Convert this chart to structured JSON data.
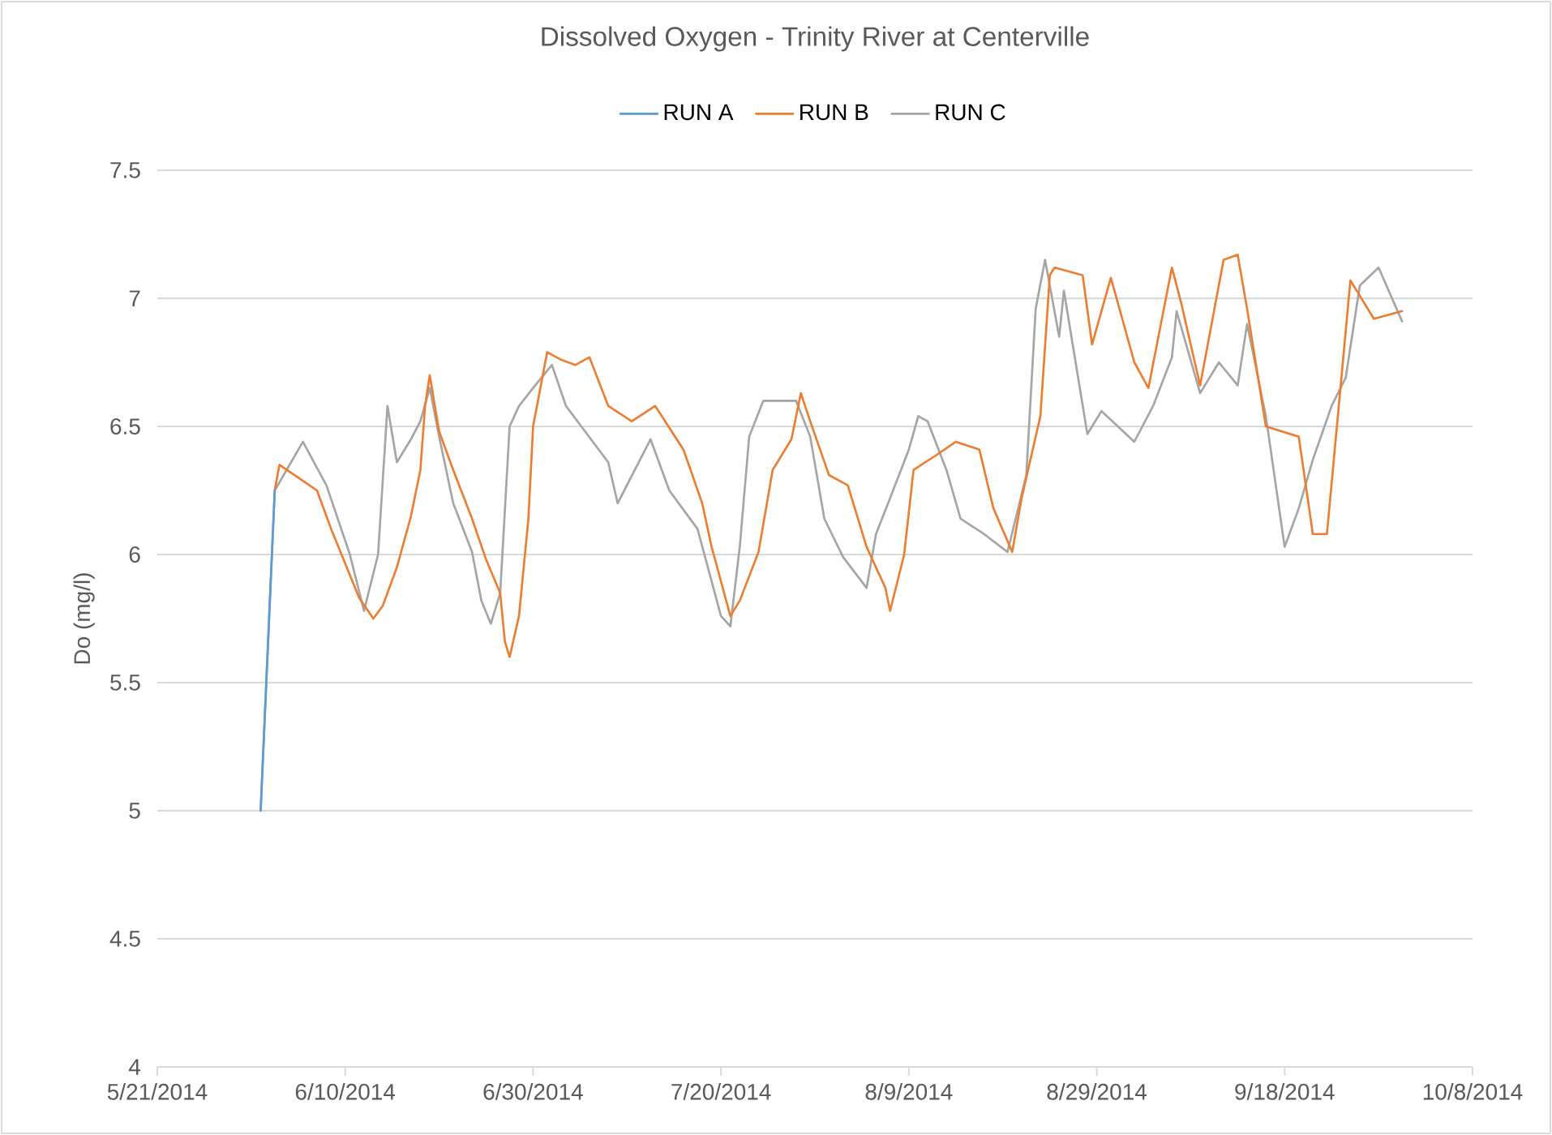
{
  "chart_data": {
    "type": "line",
    "title": "Dissolved Oxygen - Trinity River at Centerville",
    "ylabel": "Do (mg/l)",
    "xlim": [
      "2014-05-21",
      "2014-10-08"
    ],
    "xticks": [
      {
        "value": "2014-05-21",
        "label": "5/21/2014"
      },
      {
        "value": "2014-06-10",
        "label": "6/10/2014"
      },
      {
        "value": "2014-06-30",
        "label": "6/30/2014"
      },
      {
        "value": "2014-07-20",
        "label": "7/20/2014"
      },
      {
        "value": "2014-08-09",
        "label": "8/9/2014"
      },
      {
        "value": "2014-08-29",
        "label": "8/29/2014"
      },
      {
        "value": "2014-09-18",
        "label": "9/18/2014"
      },
      {
        "value": "2014-10-08",
        "label": "10/8/2014"
      }
    ],
    "ylim": [
      4,
      7.5
    ],
    "yticks": [
      4,
      4.5,
      5,
      5.5,
      6,
      6.5,
      7,
      7.5
    ],
    "grid": "y",
    "legend": "top",
    "line_style": "solid",
    "series": [
      {
        "name": "RUN A",
        "color": "#5b9bd5",
        "x": [
          "2014-06-01T00:00",
          "2014-06-02T12:00"
        ],
        "values": [
          5.0,
          6.25
        ]
      },
      {
        "name": "RUN B",
        "color": "#ed7d31",
        "x": [
          "2014-06-02T12:00",
          "2014-06-03T00:00",
          "2014-06-05T00:00",
          "2014-06-07T00:00",
          "2014-06-08T12:00",
          "2014-06-10T12:00",
          "2014-06-11T12:00",
          "2014-06-13T00:00",
          "2014-06-14T00:00",
          "2014-06-15T12:00",
          "2014-06-17T00:00",
          "2014-06-18T00:00",
          "2014-06-18T12:00",
          "2014-06-19T00:00",
          "2014-06-20T00:00",
          "2014-06-21T12:00",
          "2014-06-23T12:00",
          "2014-06-25T00:00",
          "2014-06-26T12:00",
          "2014-06-27T00:00",
          "2014-06-27T12:00",
          "2014-06-28T12:00",
          "2014-06-29T12:00",
          "2014-06-30T00:00",
          "2014-07-01T12:00",
          "2014-07-03T00:00",
          "2014-07-04T12:00",
          "2014-07-06T00:00",
          "2014-07-08T00:00",
          "2014-07-10T12:00",
          "2014-07-13T00:00",
          "2014-07-16T00:00",
          "2014-07-18T00:00",
          "2014-07-19T00:00",
          "2014-07-21T00:00",
          "2014-07-22T00:00",
          "2014-07-24T00:00",
          "2014-07-25T12:00",
          "2014-07-27T12:00",
          "2014-07-28T12:00",
          "2014-07-29T12:00",
          "2014-07-31T12:00",
          "2014-08-02T12:00",
          "2014-08-04T12:00",
          "2014-08-06T12:00",
          "2014-08-07T00:00",
          "2014-08-08T12:00",
          "2014-08-09T12:00",
          "2014-08-12T00:00",
          "2014-08-14T00:00",
          "2014-08-16T12:00",
          "2014-08-18T00:00",
          "2014-08-20T00:00",
          "2014-08-21T00:00",
          "2014-08-23T00:00",
          "2014-08-24T00:00",
          "2014-08-24T12:00",
          "2014-08-27T12:00",
          "2014-08-28T12:00",
          "2014-08-30T12:00",
          "2014-09-02T00:00",
          "2014-09-03T12:00",
          "2014-09-06T00:00",
          "2014-09-07T00:00",
          "2014-09-09T00:00",
          "2014-09-11T12:00",
          "2014-09-13T00:00",
          "2014-09-14T00:00",
          "2014-09-16T00:00",
          "2014-09-19T12:00",
          "2014-09-21T00:00",
          "2014-09-22T12:00",
          "2014-09-25T00:00",
          "2014-09-27T12:00",
          "2014-09-30T12:00"
        ],
        "values": [
          6.25,
          6.35,
          6.3,
          6.25,
          6.1,
          5.92,
          5.83,
          5.75,
          5.8,
          5.95,
          6.15,
          6.33,
          6.58,
          6.7,
          6.48,
          6.33,
          6.14,
          5.98,
          5.85,
          5.66,
          5.6,
          5.76,
          6.14,
          6.5,
          6.79,
          6.76,
          6.74,
          6.77,
          6.58,
          6.52,
          6.58,
          6.41,
          6.2,
          6.03,
          5.76,
          5.82,
          6.01,
          6.33,
          6.45,
          6.63,
          6.52,
          6.31,
          6.27,
          6.03,
          5.87,
          5.78,
          6.0,
          6.33,
          6.39,
          6.44,
          6.41,
          6.18,
          6.01,
          6.22,
          6.54,
          7.09,
          7.12,
          7.09,
          6.82,
          7.08,
          6.75,
          6.65,
          7.12,
          6.98,
          6.66,
          7.15,
          7.17,
          6.96,
          6.5,
          6.46,
          6.08,
          6.08,
          7.07,
          6.92,
          6.95
        ]
      },
      {
        "name": "RUN C",
        "color": "#a5a5a5",
        "x": [
          "2014-06-01T00:00",
          "2014-06-02T12:00",
          "2014-06-05T12:00",
          "2014-06-08T00:00",
          "2014-06-10T12:00",
          "2014-06-12T00:00",
          "2014-06-13T12:00",
          "2014-06-14T12:00",
          "2014-06-15T12:00",
          "2014-06-17T00:00",
          "2014-06-18T00:00",
          "2014-06-19T00:00",
          "2014-06-20T00:00",
          "2014-06-21T12:00",
          "2014-06-23T12:00",
          "2014-06-24T12:00",
          "2014-06-25T12:00",
          "2014-06-26T12:00",
          "2014-06-27T12:00",
          "2014-06-28T12:00",
          "2014-06-30T00:00",
          "2014-07-02T00:00",
          "2014-07-03T12:00",
          "2014-07-08T00:00",
          "2014-07-09T00:00",
          "2014-07-12T12:00",
          "2014-07-14T12:00",
          "2014-07-17T12:00",
          "2014-07-20T00:00",
          "2014-07-21T00:00",
          "2014-07-22T00:00",
          "2014-07-23T00:00",
          "2014-07-24T12:00",
          "2014-07-26T00:00",
          "2014-07-28T00:00",
          "2014-07-29T12:00",
          "2014-07-31T00:00",
          "2014-08-02T00:00",
          "2014-08-04T12:00",
          "2014-08-05T12:00",
          "2014-08-07T00:00",
          "2014-08-09T00:00",
          "2014-08-10T00:00",
          "2014-08-11T00:00",
          "2014-08-13T00:00",
          "2014-08-14T12:00",
          "2014-08-17T00:00",
          "2014-08-19T12:00",
          "2014-08-21T12:00",
          "2014-08-22T12:00",
          "2014-08-23T12:00",
          "2014-08-25T00:00",
          "2014-08-25T12:00",
          "2014-08-28T00:00",
          "2014-08-29T12:00",
          "2014-09-02T00:00",
          "2014-09-04T00:00",
          "2014-09-06T00:00",
          "2014-09-06T12:00",
          "2014-09-09T00:00",
          "2014-09-11T00:00",
          "2014-09-13T00:00",
          "2014-09-14T00:00",
          "2014-09-16T00:00",
          "2014-09-18T00:00",
          "2014-09-19T12:00",
          "2014-09-21T00:00",
          "2014-09-23T00:00",
          "2014-09-24T12:00",
          "2014-09-26T00:00",
          "2014-09-28T00:00",
          "2014-09-30T12:00"
        ],
        "values": [
          5.0,
          6.25,
          6.44,
          6.27,
          6.0,
          5.78,
          6.0,
          6.58,
          6.36,
          6.45,
          6.52,
          6.65,
          6.46,
          6.2,
          6.01,
          5.82,
          5.73,
          5.85,
          6.5,
          6.58,
          6.65,
          6.74,
          6.58,
          6.36,
          6.2,
          6.45,
          6.25,
          6.1,
          5.76,
          5.72,
          6.03,
          6.46,
          6.6,
          6.6,
          6.6,
          6.46,
          6.14,
          5.99,
          5.87,
          6.08,
          6.22,
          6.41,
          6.54,
          6.52,
          6.33,
          6.14,
          6.08,
          6.01,
          6.31,
          6.96,
          7.15,
          6.85,
          7.03,
          6.47,
          6.56,
          6.44,
          6.58,
          6.77,
          6.95,
          6.63,
          6.75,
          6.66,
          6.9,
          6.54,
          6.03,
          6.18,
          6.37,
          6.58,
          6.69,
          7.05,
          7.12,
          6.91
        ]
      }
    ]
  }
}
